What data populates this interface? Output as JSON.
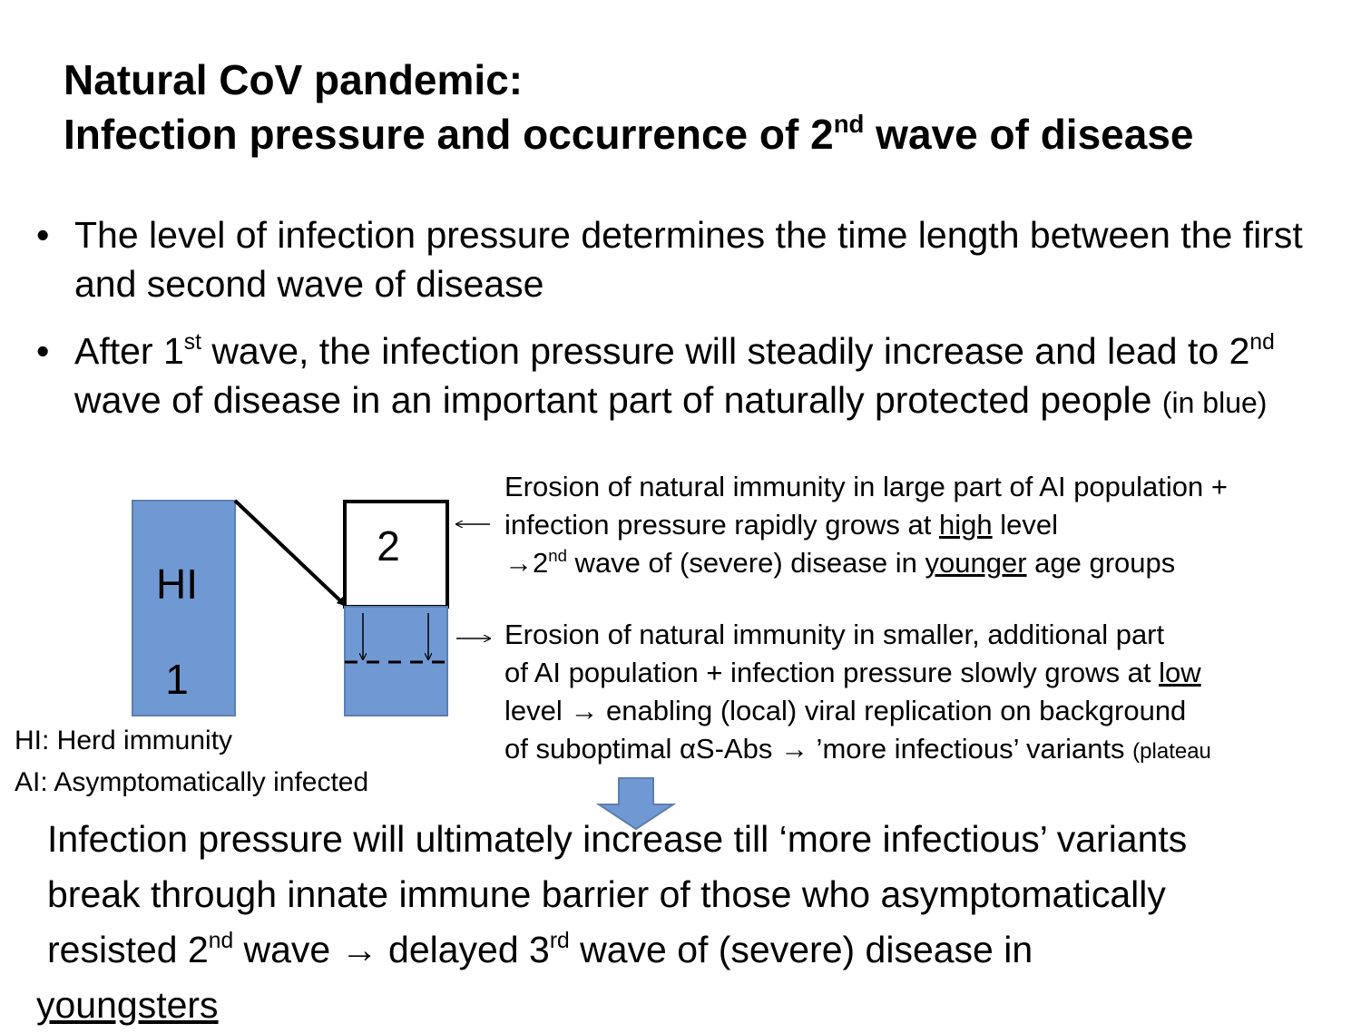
{
  "title": {
    "line1": "Natural CoV pandemic:",
    "line2_pre": "Infection pressure and occurrence of 2",
    "line2_sup": "nd",
    "line2_post": " wave of disease"
  },
  "bullets": {
    "b1": "The level of infection pressure determines the time length between the first and second wave of disease",
    "b2_a": "After 1",
    "b2_sup1": "st",
    "b2_b": " wave, the infection pressure will steadily increase and lead to 2",
    "b2_sup2": "nd",
    "b2_c": " wave of disease in an important part of naturally protected people ",
    "b2_small": "(in blue)"
  },
  "diagram": {
    "bar1_top": "HI",
    "bar1_bottom": "1",
    "bar2_label": "2",
    "colors": {
      "blue": "#7099d4",
      "border": "#5b7fb0"
    }
  },
  "annotation_top": {
    "l1": "Erosion of natural immunity in large part of AI population +",
    "l2_pre": "infection pressure rapidly grows at ",
    "l2_u": "high",
    "l2_post": " level",
    "l3_arrow": "→",
    "l3_pre": "2",
    "l3_sup": "nd",
    "l3_mid": " wave of (severe) disease in ",
    "l3_u": "younger",
    "l3_post": " age groups"
  },
  "annotation_bottom": {
    "l1": "Erosion of natural immunity in smaller, additional part",
    "l2_pre": "of AI population + infection pressure slowly grows at ",
    "l2_u": "low",
    "l3": "level →    enabling (local) viral replication on background",
    "l4": "of suboptimal αS-Abs →    ’more infectious’ variants ",
    "l4_small": "(plateau"
  },
  "legend": {
    "hi": "HI: Herd immunity",
    "ai": "AI: Asymptomatically infected"
  },
  "conclusion": {
    "l1": "Infection pressure will ultimately increase till ‘more infectious’ variants",
    "l2": "break through innate immune barrier of those who asymptomatically",
    "l3_a": "resisted 2",
    "l3_sup1": "nd",
    "l3_b": " wave →    delayed 3",
    "l3_sup2": "rd",
    "l3_c": " wave of (severe) disease in",
    "l4": "youngsters"
  }
}
